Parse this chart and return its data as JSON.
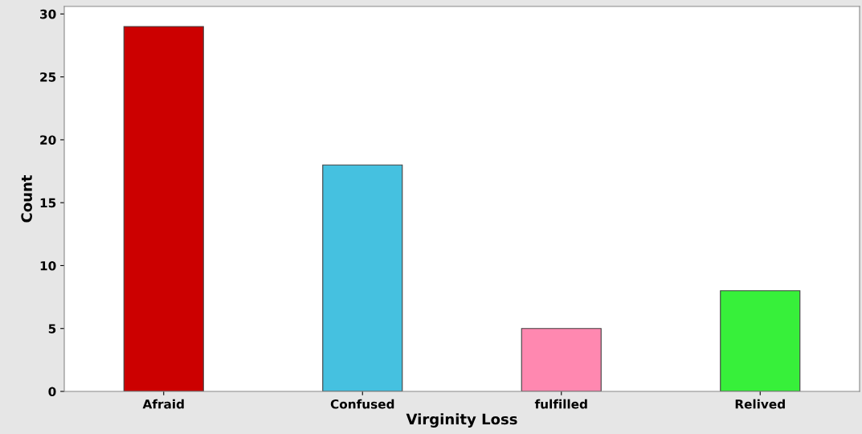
{
  "chart_data": {
    "type": "bar",
    "xlabel": "Virginity Loss",
    "ylabel": "Count",
    "categories": [
      "Afraid",
      "Confused",
      "fulfilled",
      "Relived"
    ],
    "values": [
      29,
      18,
      5,
      8
    ],
    "colors": [
      "#cc0000",
      "#45c1e0",
      "#ff88b0",
      "#37f03a"
    ],
    "ylim": [
      0,
      30.6
    ],
    "yticks": [
      0,
      5,
      10,
      15,
      20,
      25,
      30
    ],
    "grid": false
  }
}
